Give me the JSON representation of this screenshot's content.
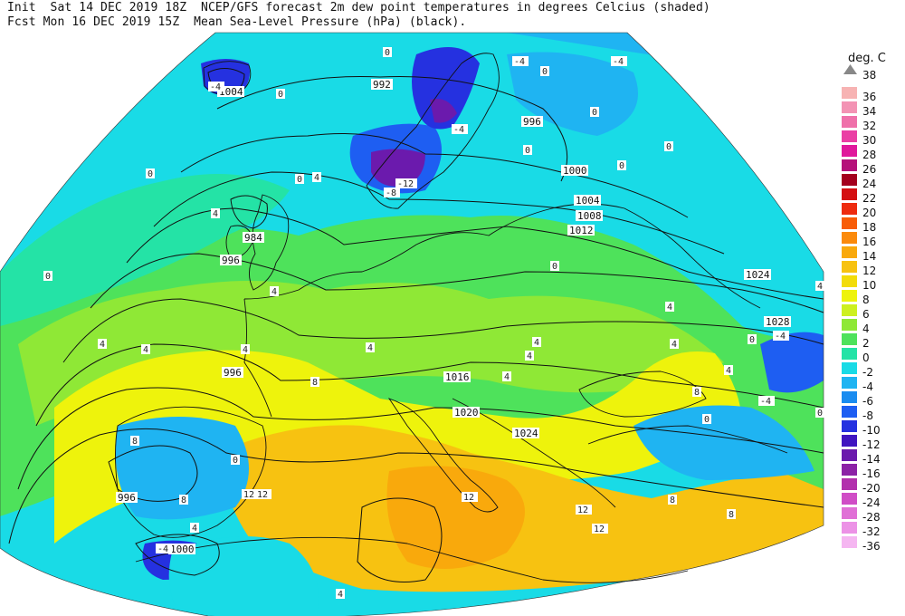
{
  "header": {
    "line1": "Init  Sat 14 DEC 2019 18Z  NCEP/GFS forecast 2m dew point temperatures in degrees Celcius (shaded)",
    "line2": "Fcst Mon 16 DEC 2019 15Z  Mean Sea-Level Pressure (hPa) (black)."
  },
  "legend": {
    "title": "deg. C",
    "top_value": "38",
    "levels": [
      {
        "label": "36",
        "color": "#f7b3b3"
      },
      {
        "label": "34",
        "color": "#f393b4"
      },
      {
        "label": "32",
        "color": "#ef70aa"
      },
      {
        "label": "30",
        "color": "#ea3fa4"
      },
      {
        "label": "28",
        "color": "#e0189c"
      },
      {
        "label": "26",
        "color": "#b5127a"
      },
      {
        "label": "24",
        "color": "#a4001e"
      },
      {
        "label": "22",
        "color": "#d40f12"
      },
      {
        "label": "20",
        "color": "#ee2b0f"
      },
      {
        "label": "18",
        "color": "#f85c08"
      },
      {
        "label": "16",
        "color": "#fb8a0b"
      },
      {
        "label": "14",
        "color": "#f9a90c"
      },
      {
        "label": "12",
        "color": "#f7c211"
      },
      {
        "label": "10",
        "color": "#f2dc0a"
      },
      {
        "label": "8",
        "color": "#eef30c"
      },
      {
        "label": "6",
        "color": "#cdf020"
      },
      {
        "label": "4",
        "color": "#8fe836"
      },
      {
        "label": "2",
        "color": "#4ee25b"
      },
      {
        "label": "0",
        "color": "#24e3a6"
      },
      {
        "label": "-2",
        "color": "#19dbe6"
      },
      {
        "label": "-4",
        "color": "#1fb4f2"
      },
      {
        "label": "-6",
        "color": "#1a8cf0"
      },
      {
        "label": "-8",
        "color": "#1e5ef2"
      },
      {
        "label": "-10",
        "color": "#2531e0"
      },
      {
        "label": "-12",
        "color": "#4015c0"
      },
      {
        "label": "-14",
        "color": "#6b1aad"
      },
      {
        "label": "-16",
        "color": "#8c22a6"
      },
      {
        "label": "-20",
        "color": "#b230ad"
      },
      {
        "label": "-24",
        "color": "#d04dc6"
      },
      {
        "label": "-28",
        "color": "#e070d6"
      },
      {
        "label": "-32",
        "color": "#ec92e6"
      },
      {
        "label": "-36",
        "color": "#f5b6f1"
      }
    ]
  },
  "map": {
    "isobar_labels": [
      "1004",
      "992",
      "996",
      "1000",
      "1004",
      "1008",
      "1012",
      "984",
      "996",
      "1024",
      "1028",
      "996",
      "1016",
      "1020",
      "1024",
      "996",
      "1000"
    ],
    "temp_labels": [
      "0",
      "0",
      "-4",
      "-4",
      "4",
      "0",
      "0",
      "0",
      "-4",
      "0",
      "0",
      "4",
      "0",
      "0",
      "0",
      "0",
      "4",
      "4",
      "4",
      "4",
      "4",
      "4",
      "0",
      "4",
      "4",
      "4",
      "8",
      "0",
      "-4",
      "4",
      "8",
      "0",
      "-4",
      "0",
      "12",
      "8",
      "12",
      "8",
      "4",
      "12",
      "4",
      "8",
      "8",
      "-12",
      "-8",
      "-4",
      "12",
      "12",
      "-4",
      "4",
      "4"
    ]
  }
}
